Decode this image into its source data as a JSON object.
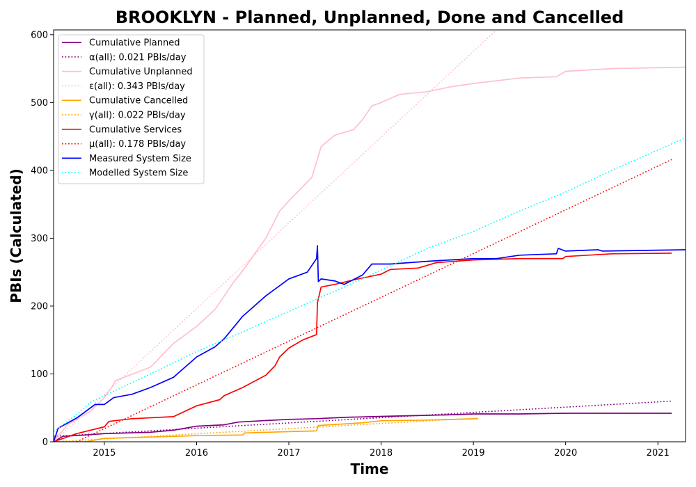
{
  "chart_data": {
    "type": "line",
    "title": "BROOKLYN - Planned, Unplanned, Done  and Cancelled",
    "xlabel": "Time",
    "ylabel": "PBIs (Calculated)",
    "xlim": [
      2014.45,
      2021.3
    ],
    "ylim": [
      0,
      607
    ],
    "xticks": [
      2015,
      2016,
      2017,
      2018,
      2019,
      2020,
      2021
    ],
    "xtick_labels": [
      "2015",
      "2016",
      "2017",
      "2018",
      "2019",
      "2020",
      "2021"
    ],
    "yticks": [
      0,
      100,
      200,
      300,
      400,
      500,
      600
    ],
    "ytick_labels": [
      "0",
      "100",
      "200",
      "300",
      "400",
      "500",
      "600"
    ],
    "grid": false,
    "legend_position": "top-left",
    "series": [
      {
        "name": "Cumulative Planned",
        "color": "#800080",
        "style": "solid",
        "x": [
          2014.45,
          2014.55,
          2014.8,
          2015.0,
          2015.5,
          2015.75,
          2016.0,
          2016.3,
          2016.45,
          2016.7,
          2017.0,
          2017.3,
          2017.6,
          2017.9,
          2018.2,
          2018.5,
          2018.8,
          2019.0,
          2019.5,
          2020.0,
          2020.5,
          2021.15
        ],
        "y": [
          0,
          8,
          10,
          12,
          14,
          17,
          23,
          25,
          29,
          31,
          33,
          34,
          36,
          37,
          38,
          39,
          40,
          41,
          41,
          42,
          42,
          42
        ]
      },
      {
        "name": "α(all): 0.021 PBIs/day",
        "color": "#800080",
        "style": "dotted",
        "x": [
          2014.45,
          2021.15
        ],
        "y": [
          8,
          60
        ]
      },
      {
        "name": "Cumulative Unplanned",
        "color": "#ffc0cb",
        "style": "solid",
        "x": [
          2014.45,
          2014.6,
          2014.85,
          2015.0,
          2015.08,
          2015.12,
          2015.25,
          2015.5,
          2015.75,
          2016.0,
          2016.2,
          2016.4,
          2016.5,
          2016.75,
          2016.9,
          2017.0,
          2017.25,
          2017.35,
          2017.5,
          2017.7,
          2017.8,
          2017.9,
          2018.0,
          2018.2,
          2018.5,
          2018.75,
          2019.0,
          2019.5,
          2019.9,
          2020.0,
          2020.5,
          2021.3
        ],
        "y": [
          0,
          25,
          45,
          65,
          80,
          90,
          97,
          110,
          145,
          170,
          195,
          235,
          252,
          300,
          340,
          355,
          390,
          435,
          452,
          460,
          475,
          495,
          500,
          512,
          516,
          523,
          528,
          536,
          538,
          546,
          550,
          552
        ]
      },
      {
        "name": "ε(all): 0.343 PBIs/day",
        "color": "#ffc0cb",
        "style": "dotted",
        "x": [
          2014.45,
          2019.25
        ],
        "y": [
          0,
          607
        ]
      },
      {
        "name": "Cumulative Cancelled",
        "color": "#ffa500",
        "style": "solid",
        "x": [
          2014.45,
          2014.8,
          2015.0,
          2015.5,
          2016.0,
          2016.5,
          2016.52,
          2017.0,
          2017.3,
          2017.32,
          2017.8,
          2018.0,
          2018.5,
          2019.05
        ],
        "y": [
          0,
          0,
          5,
          7,
          9,
          10,
          13,
          15,
          16,
          24,
          28,
          31,
          32,
          34
        ]
      },
      {
        "name": "γ(all): 0.022 PBIs/day",
        "color": "#ffa500",
        "style": "dotted",
        "x": [
          2014.45,
          2019.05
        ],
        "y": [
          0,
          35
        ]
      },
      {
        "name": "Cumulative Services",
        "color": "#ff0000",
        "style": "solid",
        "x": [
          2014.45,
          2014.7,
          2015.0,
          2015.05,
          2015.3,
          2015.75,
          2016.0,
          2016.25,
          2016.3,
          2016.5,
          2016.75,
          2016.85,
          2016.9,
          2017.0,
          2017.15,
          2017.3,
          2017.31,
          2017.35,
          2017.5,
          2017.75,
          2018.0,
          2018.1,
          2018.4,
          2018.6,
          2019.0,
          2019.5,
          2019.97,
          2020.0,
          2020.5,
          2021.15
        ],
        "y": [
          0,
          12,
          22,
          30,
          34,
          37,
          53,
          62,
          68,
          80,
          98,
          112,
          125,
          138,
          150,
          158,
          205,
          228,
          232,
          240,
          247,
          254,
          256,
          264,
          268,
          270,
          270,
          273,
          277,
          278
        ]
      },
      {
        "name": "μ(all): 0.178 PBIs/day",
        "color": "#ff0000",
        "style": "dotted",
        "x": [
          2014.7,
          2021.15
        ],
        "y": [
          0,
          416
        ]
      },
      {
        "name": "Measured System Size",
        "color": "#0000ff",
        "style": "solid",
        "x": [
          2014.45,
          2014.5,
          2014.7,
          2014.9,
          2015.0,
          2015.1,
          2015.3,
          2015.5,
          2015.75,
          2016.0,
          2016.2,
          2016.3,
          2016.5,
          2016.75,
          2016.9,
          2017.0,
          2017.2,
          2017.3,
          2017.31,
          2017.32,
          2017.35,
          2017.5,
          2017.6,
          2017.8,
          2017.9,
          2018.1,
          2018.5,
          2018.75,
          2019.0,
          2019.25,
          2019.5,
          2019.9,
          2019.92,
          2020.0,
          2020.35,
          2020.4,
          2021.3
        ],
        "y": [
          0,
          20,
          35,
          55,
          55,
          65,
          70,
          80,
          95,
          125,
          140,
          152,
          185,
          215,
          230,
          240,
          250,
          270,
          289,
          236,
          240,
          237,
          232,
          246,
          262,
          262,
          266,
          268,
          270,
          270,
          275,
          277,
          285,
          281,
          283,
          281,
          283
        ]
      },
      {
        "name": "Modelled System Size",
        "color": "#00ffff",
        "style": "dotted",
        "x": [
          2014.45,
          2014.7,
          2014.85,
          2015.0,
          2015.5,
          2016.0,
          2016.5,
          2017.0,
          2017.5,
          2018.0,
          2018.5,
          2019.0,
          2019.5,
          2020.0,
          2020.5,
          2021.3
        ],
        "y": [
          15,
          40,
          58,
          68,
          100,
          133,
          162,
          192,
          222,
          253,
          285,
          310,
          340,
          368,
          400,
          448
        ]
      }
    ]
  }
}
